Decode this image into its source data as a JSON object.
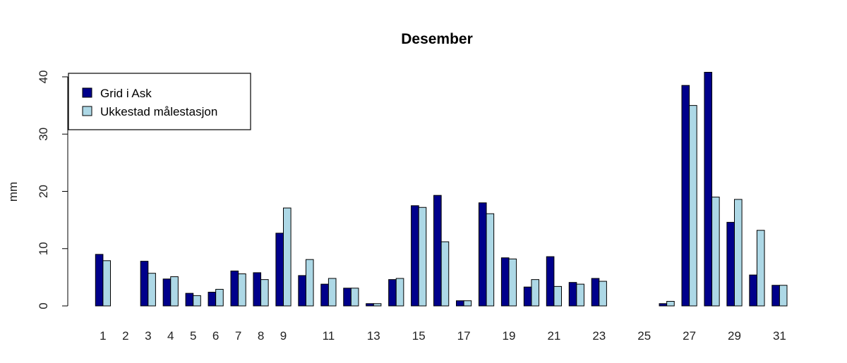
{
  "chart_data": {
    "type": "bar",
    "title": "Desember",
    "xlabel": "",
    "ylabel": "mm",
    "ylim": [
      0,
      40
    ],
    "yticks": [
      0,
      10,
      20,
      30,
      40
    ],
    "categories": [
      "1",
      "2",
      "3",
      "4",
      "5",
      "6",
      "7",
      "8",
      "9",
      "10",
      "11",
      "12",
      "13",
      "14",
      "15",
      "16",
      "17",
      "18",
      "19",
      "20",
      "21",
      "22",
      "23",
      "24",
      "25",
      "26",
      "27",
      "28",
      "29",
      "30",
      "31"
    ],
    "xtick_labels_shown": [
      "1",
      "2",
      "3",
      "4",
      "5",
      "6",
      "7",
      "8",
      "9",
      "11",
      "13",
      "15",
      "17",
      "19",
      "21",
      "23",
      "25",
      "27",
      "29",
      "31"
    ],
    "series": [
      {
        "name": "Grid i Ask",
        "color": "#00008B",
        "values": [
          9.0,
          0.0,
          7.8,
          4.7,
          2.2,
          2.4,
          6.1,
          5.8,
          12.7,
          5.3,
          3.8,
          3.1,
          0.4,
          4.6,
          17.5,
          19.3,
          0.9,
          18.0,
          8.4,
          3.3,
          8.6,
          4.1,
          4.8,
          0.0,
          0.0,
          0.4,
          38.5,
          40.8,
          14.6,
          5.4,
          3.6
        ]
      },
      {
        "name": "Ukkestad målestasjon",
        "color": "#ADD8E6",
        "values": [
          7.9,
          0.0,
          5.7,
          5.1,
          1.8,
          2.9,
          5.6,
          4.6,
          17.1,
          8.1,
          4.8,
          3.1,
          0.4,
          4.8,
          17.2,
          11.2,
          0.9,
          16.1,
          8.2,
          4.6,
          3.4,
          3.8,
          4.3,
          0.0,
          0.0,
          0.8,
          35.0,
          19.0,
          18.6,
          13.2,
          3.6
        ]
      }
    ],
    "grid": false,
    "legend_position": "top-left"
  }
}
